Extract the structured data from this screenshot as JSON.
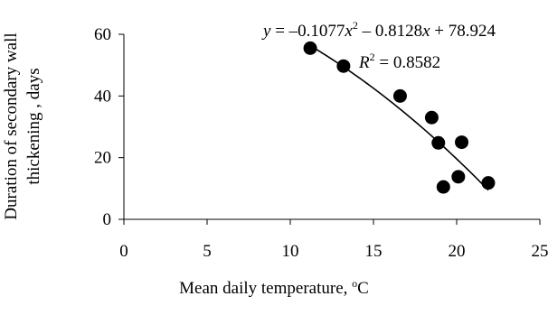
{
  "chart_data": {
    "type": "scatter",
    "xlabel": {
      "text": "Mean daily temperature, ",
      "sup": "o",
      "unit": "C"
    },
    "ylabel": {
      "line1": "Duration of secondary wall",
      "line2": "thickening , days"
    },
    "xlim": [
      0,
      25
    ],
    "ylim": [
      0,
      60
    ],
    "x_ticks": [
      0,
      5,
      10,
      15,
      20,
      25
    ],
    "y_ticks": [
      0,
      20,
      40,
      60
    ],
    "grid": false,
    "points": [
      {
        "x": 11.2,
        "y": 55.5
      },
      {
        "x": 13.2,
        "y": 49.7
      },
      {
        "x": 16.6,
        "y": 40.0
      },
      {
        "x": 18.5,
        "y": 33.0
      },
      {
        "x": 18.9,
        "y": 24.8
      },
      {
        "x": 20.3,
        "y": 25.0
      },
      {
        "x": 19.2,
        "y": 10.5
      },
      {
        "x": 20.1,
        "y": 13.8
      },
      {
        "x": 21.9,
        "y": 11.8
      }
    ],
    "trendline": {
      "type": "polynomial",
      "coefficients": {
        "a": -0.1077,
        "b": -0.8128,
        "c": 78.924
      },
      "x_range": [
        11.2,
        21.9
      ],
      "r_squared": "0.8582"
    },
    "annotations": {
      "equation": {
        "y": "y",
        "eq": " = ",
        "a": "–0.1077",
        "x1": "x",
        "sup2": "2",
        "b": " – 0.8128",
        "x2": "x",
        "c": " + 78.924"
      },
      "r2": {
        "r": "R",
        "sup2": "2",
        "eq": " = 0.8582"
      }
    }
  }
}
